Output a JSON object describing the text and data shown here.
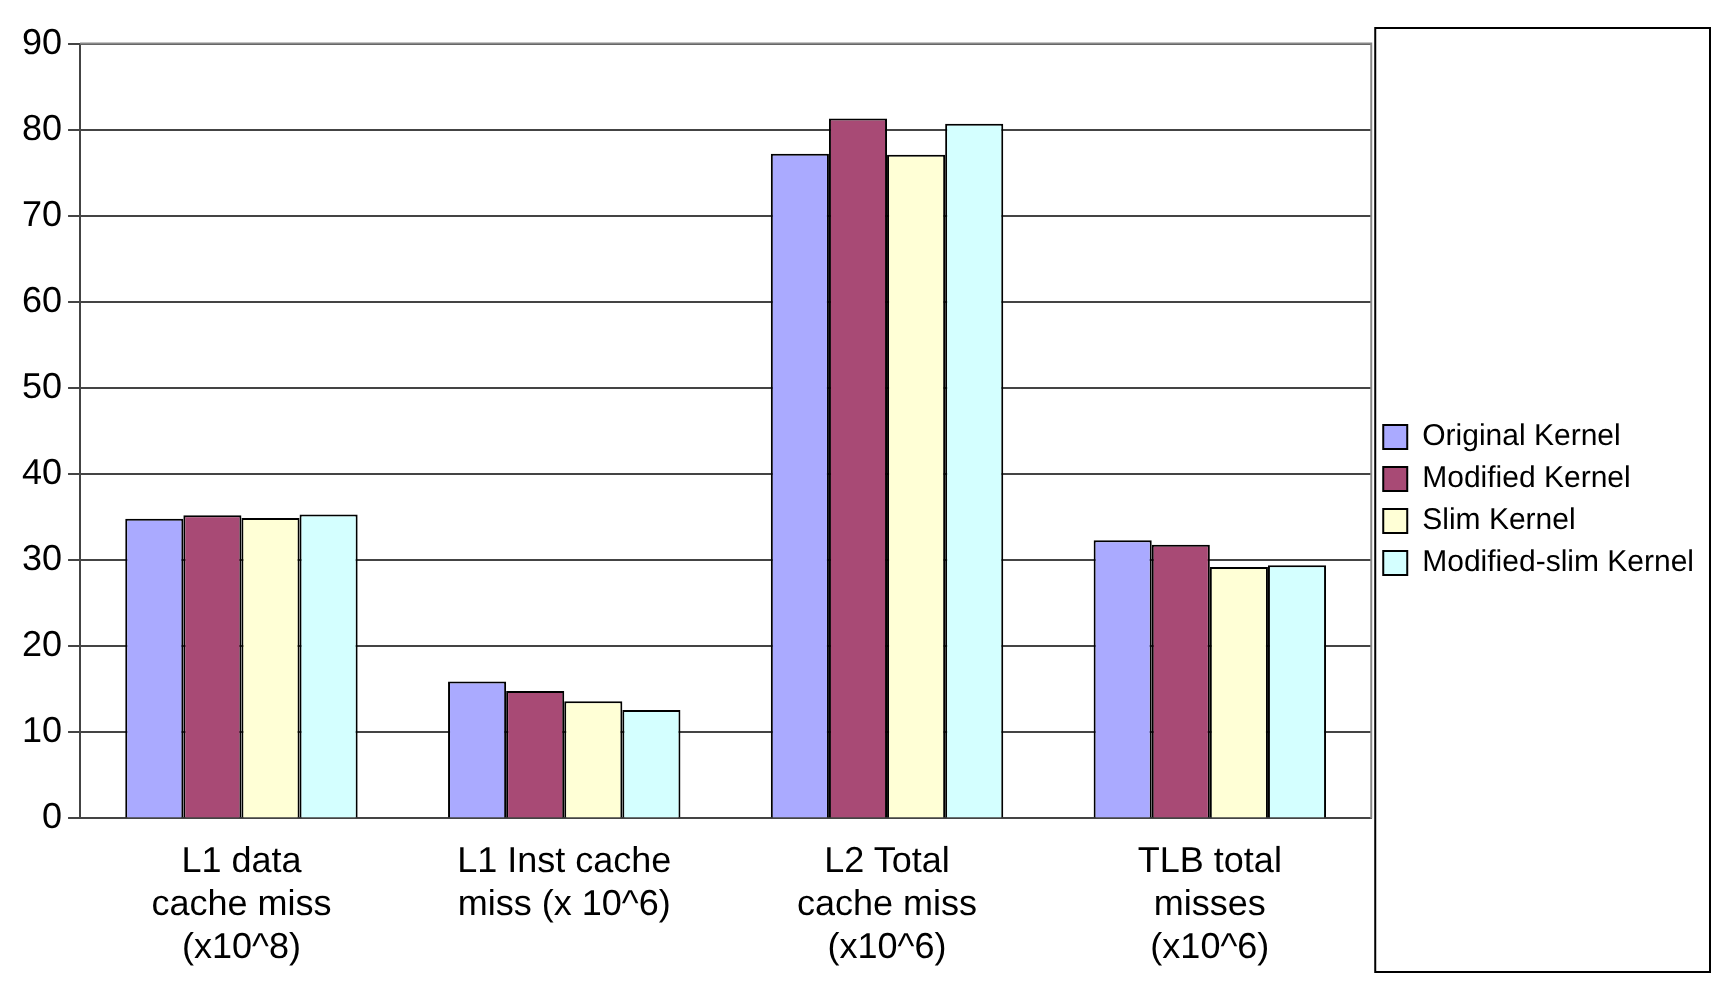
{
  "chart_data": {
    "type": "bar",
    "categories": [
      "L1 data\ncache miss\n(x10^8)",
      "L1 Inst cache\nmiss (x 10^6)",
      "L2 Total\ncache miss\n(x10^6)",
      "TLB total\nmisses\n(x10^6)"
    ],
    "series": [
      {
        "name": "Original Kernel",
        "color": "#aaaaff",
        "values": [
          34.8,
          15.9,
          77.2,
          32.3
        ]
      },
      {
        "name": "Modified Kernel",
        "color": "#a84a75",
        "values": [
          35.2,
          14.8,
          81.3,
          31.8
        ]
      },
      {
        "name": "Slim Kernel",
        "color": "#ffffd6",
        "values": [
          34.9,
          13.6,
          77.1,
          29.2
        ]
      },
      {
        "name": "Modified-slim Kernel",
        "color": "#d4ffff",
        "values": [
          35.3,
          12.6,
          80.7,
          29.4
        ]
      }
    ],
    "ylim": [
      0,
      90
    ],
    "yticks": [
      0,
      10,
      20,
      30,
      40,
      50,
      60,
      70,
      80,
      90
    ],
    "grid": "y",
    "legend": "right"
  }
}
